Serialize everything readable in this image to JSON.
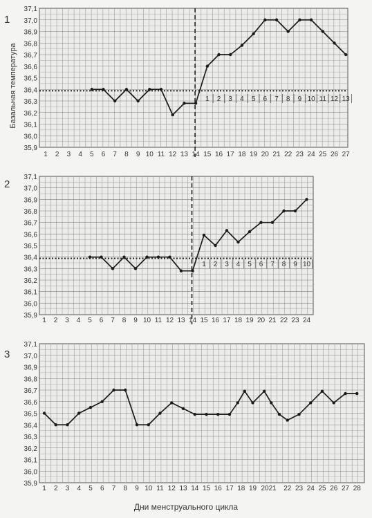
{
  "y_axis_label": "Базальная температура",
  "x_axis_title": "Дни менструального цикла",
  "chart_data": [
    {
      "type": "line",
      "panel": "1",
      "ylabel": "Базальная температура",
      "xlabel": "",
      "y_ticks": [
        "35,9",
        "36,0",
        "36,1",
        "36,2",
        "36,3",
        "36,4",
        "36,5",
        "36,6",
        "36,7",
        "36,8",
        "36,9",
        "37,0",
        "37,1"
      ],
      "ylim": [
        35.9,
        37.1
      ],
      "x_ticks": [
        "1",
        "2",
        "3",
        "4",
        "5",
        "6",
        "7",
        "8",
        "9",
        "10",
        "11",
        "12",
        "13",
        "14",
        "15",
        "16",
        "17",
        "18",
        "19",
        "20",
        "21",
        "22",
        "23",
        "24",
        "25",
        "26",
        "27"
      ],
      "series": [
        {
          "x": [
            5,
            6,
            7,
            8,
            9,
            10,
            11,
            12,
            13,
            14,
            15,
            16,
            17,
            18,
            19,
            20,
            21,
            22,
            23,
            24,
            25,
            26,
            27
          ],
          "y": [
            36.4,
            36.4,
            36.3,
            36.4,
            36.3,
            36.4,
            36.4,
            36.18,
            36.28,
            36.28,
            36.6,
            36.7,
            36.7,
            36.78,
            36.88,
            37.0,
            37.0,
            36.9,
            37.0,
            37.0,
            36.9,
            36.8,
            36.7
          ]
        }
      ],
      "reference_line_y": 36.4,
      "ovulation_day": 14,
      "phase_days": [
        "1",
        "2",
        "3",
        "4",
        "5",
        "6",
        "7",
        "8",
        "9",
        "10",
        "11",
        "12",
        "13"
      ],
      "grid": true
    },
    {
      "type": "line",
      "panel": "2",
      "ylabel": "",
      "xlabel": "",
      "y_ticks": [
        "35,9",
        "36,0",
        "36,1",
        "36,2",
        "36,3",
        "36,4",
        "36,5",
        "36,6",
        "36,7",
        "36,8",
        "36,9",
        "37,0",
        "37,1"
      ],
      "ylim": [
        35.9,
        37.1
      ],
      "x_ticks": [
        "1",
        "2",
        "3",
        "4",
        "5",
        "6",
        "7",
        "8",
        "9",
        "10",
        "11",
        "12",
        "13",
        "14",
        "15",
        "16",
        "17",
        "18",
        "19",
        "20",
        "21",
        "22",
        "23",
        "24"
      ],
      "series": [
        {
          "x": [
            5,
            6,
            7,
            8,
            9,
            10,
            11,
            12,
            13,
            14,
            15,
            16,
            17,
            18,
            19,
            20,
            21,
            22,
            23,
            24
          ],
          "y": [
            36.4,
            36.4,
            36.3,
            36.4,
            36.3,
            36.4,
            36.4,
            36.4,
            36.28,
            36.28,
            36.59,
            36.5,
            36.63,
            36.53,
            36.62,
            36.7,
            36.7,
            36.8,
            36.8,
            36.9
          ]
        }
      ],
      "reference_line_y": 36.4,
      "ovulation_day": 14,
      "phase_days": [
        "1",
        "2",
        "3",
        "4",
        "5",
        "6",
        "7",
        "8",
        "9",
        "10"
      ],
      "grid": true
    },
    {
      "type": "line",
      "panel": "3",
      "ylabel": "",
      "xlabel": "Дни менструального цикла",
      "y_ticks": [
        "35,9",
        "36,0",
        "36,1",
        "36,2",
        "36,3",
        "36,4",
        "36,5",
        "36,6",
        "36,7",
        "36,8",
        "36,9",
        "37,0",
        "37,1"
      ],
      "ylim": [
        35.9,
        37.1
      ],
      "x_ticks": [
        "1",
        "2",
        "3",
        "4",
        "5",
        "6",
        "7",
        "8",
        "9",
        "10",
        "11",
        "12",
        "13",
        "14",
        "15",
        "16",
        "17",
        "18",
        "19",
        "2021",
        "",
        "22",
        "23",
        "24",
        "25",
        "26",
        "27",
        "28"
      ],
      "series": [
        {
          "x": [
            1,
            2,
            3,
            4,
            5,
            6,
            7,
            8,
            9,
            10,
            11,
            12,
            13,
            14,
            15,
            16,
            17,
            17.7,
            18.3,
            19,
            20,
            20.6,
            21.3,
            22,
            23,
            24,
            25,
            26,
            27,
            28
          ],
          "y": [
            36.5,
            36.4,
            36.4,
            36.5,
            36.55,
            36.6,
            36.7,
            36.7,
            36.4,
            36.4,
            36.5,
            36.59,
            36.54,
            36.49,
            36.49,
            36.49,
            36.49,
            36.59,
            36.69,
            36.59,
            36.69,
            36.59,
            36.49,
            36.44,
            36.49,
            36.59,
            36.69,
            36.59,
            36.67,
            36.67
          ]
        }
      ],
      "grid": true
    }
  ]
}
